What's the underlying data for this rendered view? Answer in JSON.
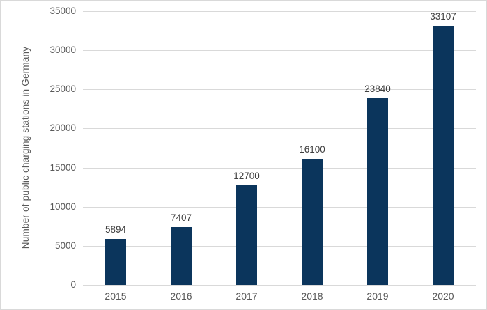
{
  "chart_data": {
    "type": "bar",
    "title": "",
    "xlabel": "",
    "ylabel": "Number  of  public charging stations in Germany",
    "categories": [
      "2015",
      "2016",
      "2017",
      "2018",
      "2019",
      "2020"
    ],
    "values": [
      5894,
      7407,
      12700,
      16100,
      23840,
      33107
    ],
    "value_labels": [
      "5894",
      "7407",
      "12700",
      "16100",
      "23840",
      "33107"
    ],
    "ylim": [
      0,
      35000
    ],
    "yticks": [
      0,
      5000,
      10000,
      15000,
      20000,
      25000,
      30000,
      35000
    ],
    "ytick_labels": [
      "0",
      "5000",
      "10000",
      "15000",
      "20000",
      "25000",
      "30000",
      "35000"
    ],
    "grid": true,
    "legend": false,
    "colors": {
      "bar": "#0b355c",
      "gridline": "#d9d9d9",
      "axis_line": "#d9d9d9",
      "tick_label": "#595959",
      "data_label": "#404040",
      "axis_title": "#595959",
      "background": "#ffffff",
      "chart_border": "#d9d9d9"
    }
  }
}
